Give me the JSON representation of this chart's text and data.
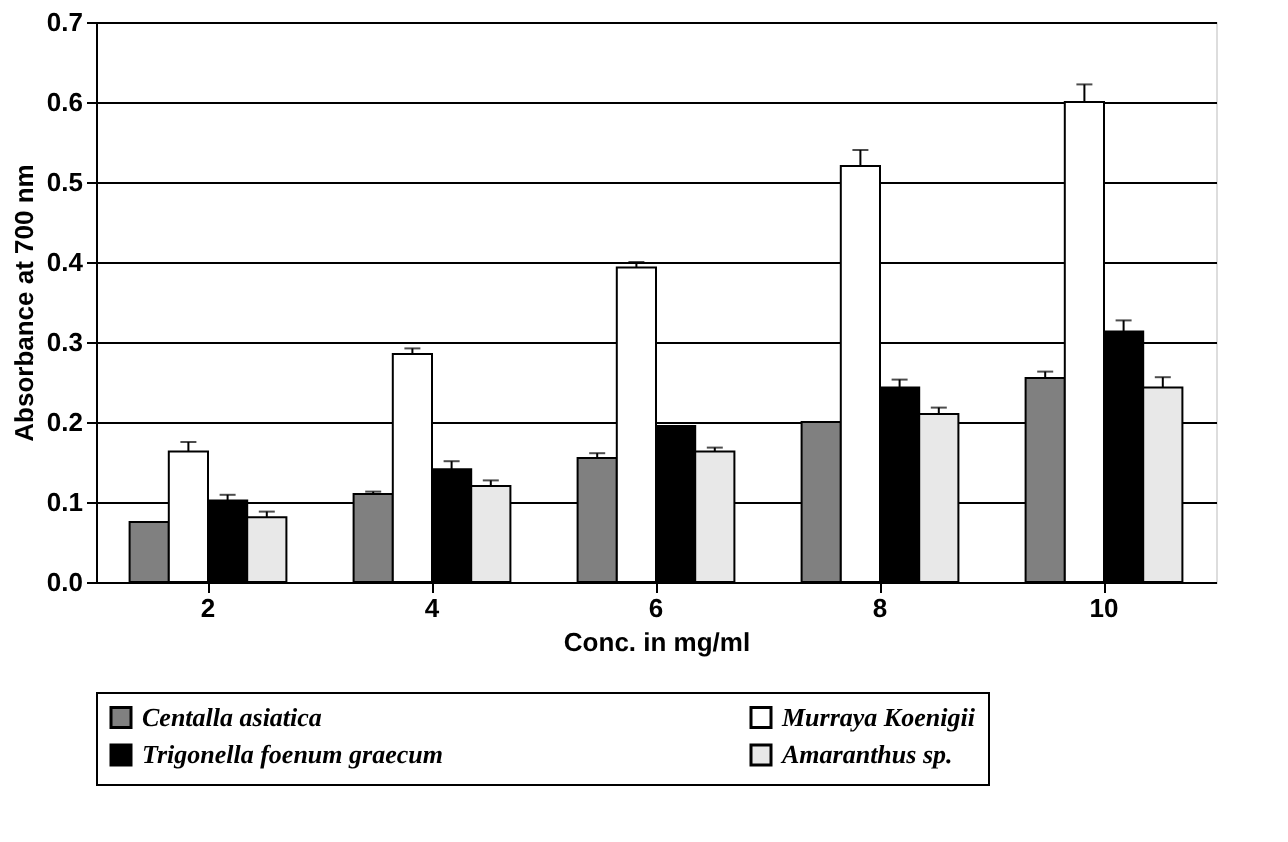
{
  "chart_data": {
    "type": "bar",
    "xlabel": "Conc. in mg/ml",
    "ylabel": "Absorbance at 700 nm",
    "categories": [
      "2",
      "4",
      "6",
      "8",
      "10"
    ],
    "series": [
      {
        "name": "Centalla asiatica",
        "color": "#808080",
        "values": [
          0.075,
          0.11,
          0.155,
          0.2,
          0.255
        ],
        "errors": [
          null,
          [
            0.11,
            0.113
          ],
          [
            0.155,
            0.161
          ],
          null,
          [
            0.255,
            0.263
          ]
        ]
      },
      {
        "name": "Murraya Koenigii",
        "color": "#ffffff",
        "values": [
          0.163,
          0.285,
          0.393,
          0.52,
          0.6
        ],
        "errors": [
          [
            0.163,
            0.175
          ],
          [
            0.285,
            0.292
          ],
          [
            0.393,
            0.4
          ],
          [
            0.52,
            0.54
          ],
          [
            0.6,
            0.622
          ]
        ]
      },
      {
        "name": "Trigonella foenum graecum",
        "color": "#000000",
        "values": [
          0.102,
          0.141,
          0.195,
          0.243,
          0.313
        ],
        "errors": [
          [
            0.102,
            0.109
          ],
          [
            0.141,
            0.151
          ],
          null,
          [
            0.243,
            0.253
          ],
          [
            0.313,
            0.327
          ]
        ]
      },
      {
        "name": "Amaranthus sp.",
        "color": "#e8e8e8",
        "values": [
          0.081,
          0.12,
          0.163,
          0.21,
          0.243
        ],
        "errors": [
          [
            0.081,
            0.088
          ],
          [
            0.12,
            0.127
          ],
          [
            0.163,
            0.168
          ],
          [
            0.21,
            0.218
          ],
          [
            0.243,
            0.256
          ]
        ]
      }
    ],
    "ylim": [
      0,
      0.7
    ],
    "yticks": [
      {
        "value": 0,
        "label": "0.0"
      },
      {
        "value": 0.1,
        "label": "0.1"
      },
      {
        "value": 0.2,
        "label": "0.2"
      },
      {
        "value": 0.3,
        "label": "0.3"
      },
      {
        "value": 0.4,
        "label": "0.4"
      },
      {
        "value": 0.5,
        "label": "0.5"
      },
      {
        "value": 0.6,
        "label": "0.6"
      },
      {
        "value": 0.7,
        "label": "0.7"
      }
    ],
    "grid": "y",
    "legend": "bottom"
  }
}
